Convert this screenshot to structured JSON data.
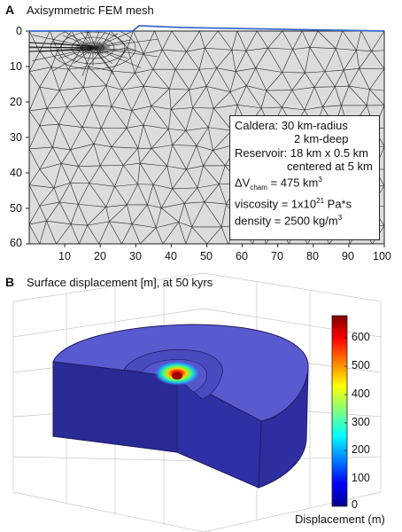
{
  "panel_a": {
    "letter": "A",
    "title": "Axisymmetric FEM mesh",
    "y_ticks": [
      "0",
      "10",
      "20",
      "30",
      "40",
      "50",
      "60"
    ],
    "x_ticks": [
      "10",
      "20",
      "30",
      "40",
      "50",
      "60",
      "70",
      "80",
      "90",
      "100"
    ],
    "info": {
      "caldera_line1": "Caldera: 30 km-radius",
      "caldera_line2": "2 km-deep",
      "reservoir_line1": "Reservoir: 18 km x 0.5 km",
      "reservoir_line2": "centered at 5 km",
      "dv_prefix": "ΔV",
      "dv_sub": "cham",
      "dv_value": " = 475 km",
      "dv_sup": "3",
      "visc_text": "viscosity = 1x10",
      "visc_sup": "21",
      "visc_unit": " Pa*s",
      "dens_text": "density = 2500 kg/m",
      "dens_sup": "3"
    },
    "colors": {
      "mesh_fill": "#dcdcdc",
      "surface": "#3a68c8"
    }
  },
  "panel_b": {
    "letter": "B",
    "title": "Surface displacement [m], at 50 kyrs",
    "colorbar_ticks": [
      "600",
      "500",
      "400",
      "300",
      "200",
      "100",
      "0"
    ],
    "colorbar_label": "Displacement (m)",
    "colors": {
      "body_blue": "#3b3bb8",
      "top_blue": "#5a5ad0",
      "side_blue": "#2a2a90"
    }
  }
}
